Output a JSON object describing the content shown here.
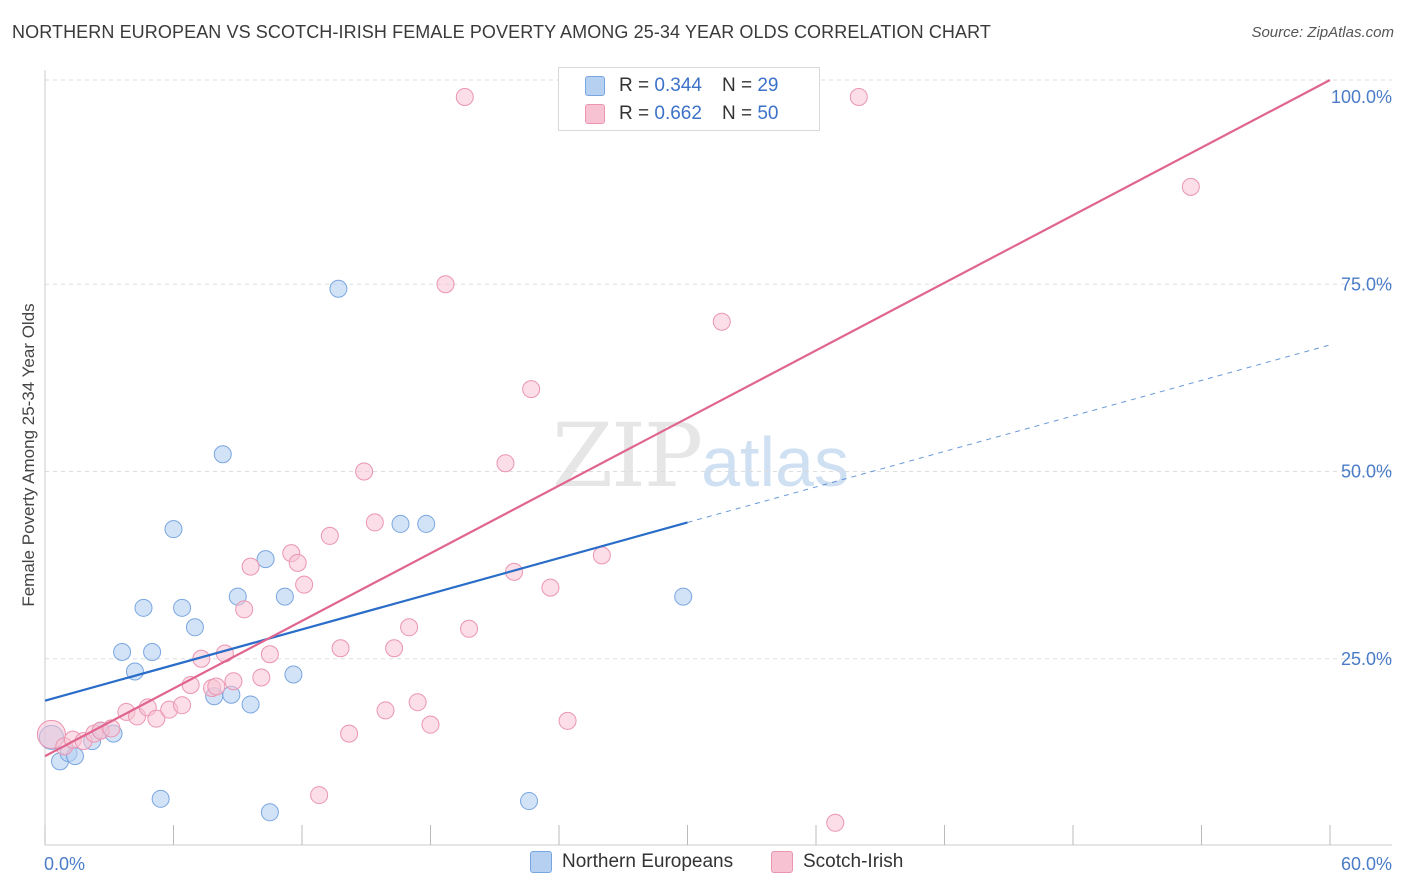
{
  "header": {
    "title": "NORTHERN EUROPEAN VS SCOTCH-IRISH FEMALE POVERTY AMONG 25-34 YEAR OLDS CORRELATION CHART",
    "source": "Source: ZipAtlas.com"
  },
  "watermark": {
    "zip": "ZIP",
    "atlas": "atlas"
  },
  "legend": {
    "row1": {
      "r_label": "R = ",
      "r_value": "0.344",
      "n_label": "N = ",
      "n_value": "29"
    },
    "row2": {
      "r_label": "R = ",
      "r_value": "0.662",
      "n_label": "N = ",
      "n_value": "50"
    }
  },
  "bottom_legend": {
    "series1": "Northern Europeans",
    "series2": "Scotch-Irish"
  },
  "colors": {
    "blue_fill": "#b6d0f2",
    "blue_stroke": "#7aa6e0",
    "blue_line": "#2a6dc9",
    "pink_fill": "#f7c3d3",
    "pink_stroke": "#eb95b1",
    "pink_line": "#e0658e",
    "grid": "#dddddd",
    "tick_label": "#4a7cc7"
  },
  "chart_data": {
    "type": "scatter",
    "title": "NORTHERN EUROPEAN VS SCOTCH-IRISH FEMALE POVERTY AMONG 25-34 YEAR OLDS CORRELATION CHART",
    "xlabel": "",
    "ylabel": "Female Poverty Among 25-34 Year Olds",
    "xlim": [
      0,
      60
    ],
    "ylim": [
      0,
      102
    ],
    "x_tick_labels": [
      "0.0%",
      "60.0%"
    ],
    "y_ticks": [
      25,
      50,
      75,
      100
    ],
    "y_tick_labels": [
      "25.0%",
      "50.0%",
      "75.0%",
      "100.0%"
    ],
    "grid": "horizontal dashed",
    "legend_position": "top-center",
    "series": [
      {
        "name": "Northern Europeans",
        "r": 0.344,
        "n": 29,
        "points": [
          [
            0.3,
            14.5
          ],
          [
            0.7,
            11.3
          ],
          [
            1.1,
            12.4
          ],
          [
            1.4,
            12.0
          ],
          [
            2.2,
            14.0
          ],
          [
            2.6,
            15.4
          ],
          [
            3.2,
            15.0
          ],
          [
            3.6,
            25.9
          ],
          [
            4.2,
            23.3
          ],
          [
            4.6,
            31.8
          ],
          [
            5.0,
            25.9
          ],
          [
            5.4,
            6.3
          ],
          [
            6.0,
            42.3
          ],
          [
            6.4,
            31.8
          ],
          [
            7.0,
            29.2
          ],
          [
            7.9,
            20.0
          ],
          [
            8.3,
            52.3
          ],
          [
            8.7,
            20.2
          ],
          [
            9.0,
            33.3
          ],
          [
            9.6,
            18.9
          ],
          [
            10.3,
            38.3
          ],
          [
            10.5,
            4.5
          ],
          [
            11.2,
            33.3
          ],
          [
            11.6,
            22.9
          ],
          [
            13.7,
            74.4
          ],
          [
            16.6,
            43.0
          ],
          [
            17.8,
            43.0
          ],
          [
            22.6,
            6.0
          ],
          [
            29.8,
            33.3
          ]
        ],
        "trend_solid": [
          [
            0,
            19.4
          ],
          [
            30,
            43.2
          ]
        ],
        "trend_dashed": [
          [
            30,
            43.2
          ],
          [
            60,
            66.9
          ]
        ]
      },
      {
        "name": "Scotch-Irish",
        "r": 0.662,
        "n": 50,
        "points": [
          [
            0.3,
            14.9
          ],
          [
            0.9,
            13.3
          ],
          [
            1.3,
            14.2
          ],
          [
            1.8,
            14.0
          ],
          [
            2.3,
            15.0
          ],
          [
            2.6,
            15.4
          ],
          [
            3.1,
            15.7
          ],
          [
            3.8,
            17.9
          ],
          [
            4.3,
            17.3
          ],
          [
            4.8,
            18.5
          ],
          [
            5.2,
            17.0
          ],
          [
            5.8,
            18.2
          ],
          [
            6.4,
            18.8
          ],
          [
            7.3,
            25.0
          ],
          [
            6.8,
            21.5
          ],
          [
            7.8,
            21.1
          ],
          [
            8.0,
            21.3
          ],
          [
            8.4,
            25.7
          ],
          [
            8.8,
            22.0
          ],
          [
            9.3,
            31.6
          ],
          [
            9.6,
            37.3
          ],
          [
            10.1,
            22.5
          ],
          [
            10.5,
            25.6
          ],
          [
            11.5,
            39.1
          ],
          [
            11.8,
            37.8
          ],
          [
            12.1,
            34.9
          ],
          [
            12.8,
            6.8
          ],
          [
            13.3,
            41.4
          ],
          [
            13.8,
            26.4
          ],
          [
            14.2,
            15.0
          ],
          [
            14.9,
            50.0
          ],
          [
            15.4,
            43.2
          ],
          [
            15.9,
            18.1
          ],
          [
            16.3,
            26.4
          ],
          [
            17.0,
            29.2
          ],
          [
            17.4,
            19.2
          ],
          [
            18.0,
            16.2
          ],
          [
            18.7,
            75.0
          ],
          [
            19.6,
            100.0
          ],
          [
            19.8,
            29.0
          ],
          [
            21.5,
            51.1
          ],
          [
            21.9,
            36.6
          ],
          [
            22.7,
            61.0
          ],
          [
            23.6,
            34.5
          ],
          [
            24.4,
            16.7
          ],
          [
            26.0,
            38.8
          ],
          [
            31.6,
            70.0
          ],
          [
            36.9,
            3.1
          ],
          [
            38.0,
            100.0
          ],
          [
            53.5,
            88.0
          ]
        ],
        "trend_solid": [
          [
            0,
            12.0
          ],
          [
            60,
            100.0
          ]
        ]
      }
    ]
  }
}
